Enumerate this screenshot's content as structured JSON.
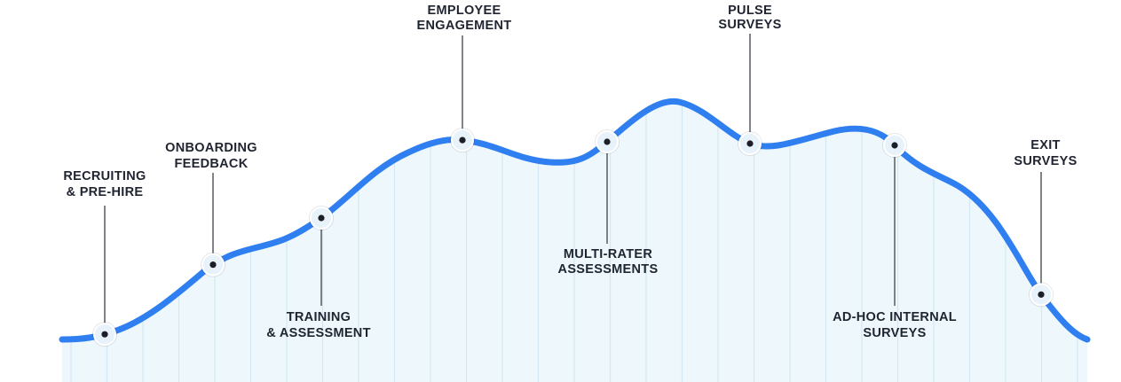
{
  "colors": {
    "curve": "#2f7ff0",
    "area_fill": "#eef8fc",
    "vertical_lines": "#d4e8f3",
    "connector_lines": "#4a4f57",
    "label_text": "#1f2430",
    "marker_ring": "#e8f2fa",
    "marker_dot": "#1c1f26"
  },
  "milestones": [
    {
      "id": "recruiting",
      "label_lines": [
        "RECRUITING",
        "& PRE-HIRE"
      ]
    },
    {
      "id": "onboarding",
      "label_lines": [
        "ONBOARDING",
        "FEEDBACK"
      ]
    },
    {
      "id": "training",
      "label_lines": [
        "TRAINING",
        "& ASSESSMENT"
      ]
    },
    {
      "id": "engagement",
      "label_lines": [
        "EMPLOYEE",
        "ENGAGEMENT"
      ]
    },
    {
      "id": "multi-rater",
      "label_lines": [
        "MULTI-RATER",
        "ASSESSMENTS"
      ]
    },
    {
      "id": "pulse",
      "label_lines": [
        "PULSE",
        "SURVEYS"
      ]
    },
    {
      "id": "ad-hoc",
      "label_lines": [
        "AD-HOC INTERNAL",
        "SURVEYS"
      ]
    },
    {
      "id": "exit",
      "label_lines": [
        "EXIT",
        "SURVEYS"
      ]
    }
  ]
}
